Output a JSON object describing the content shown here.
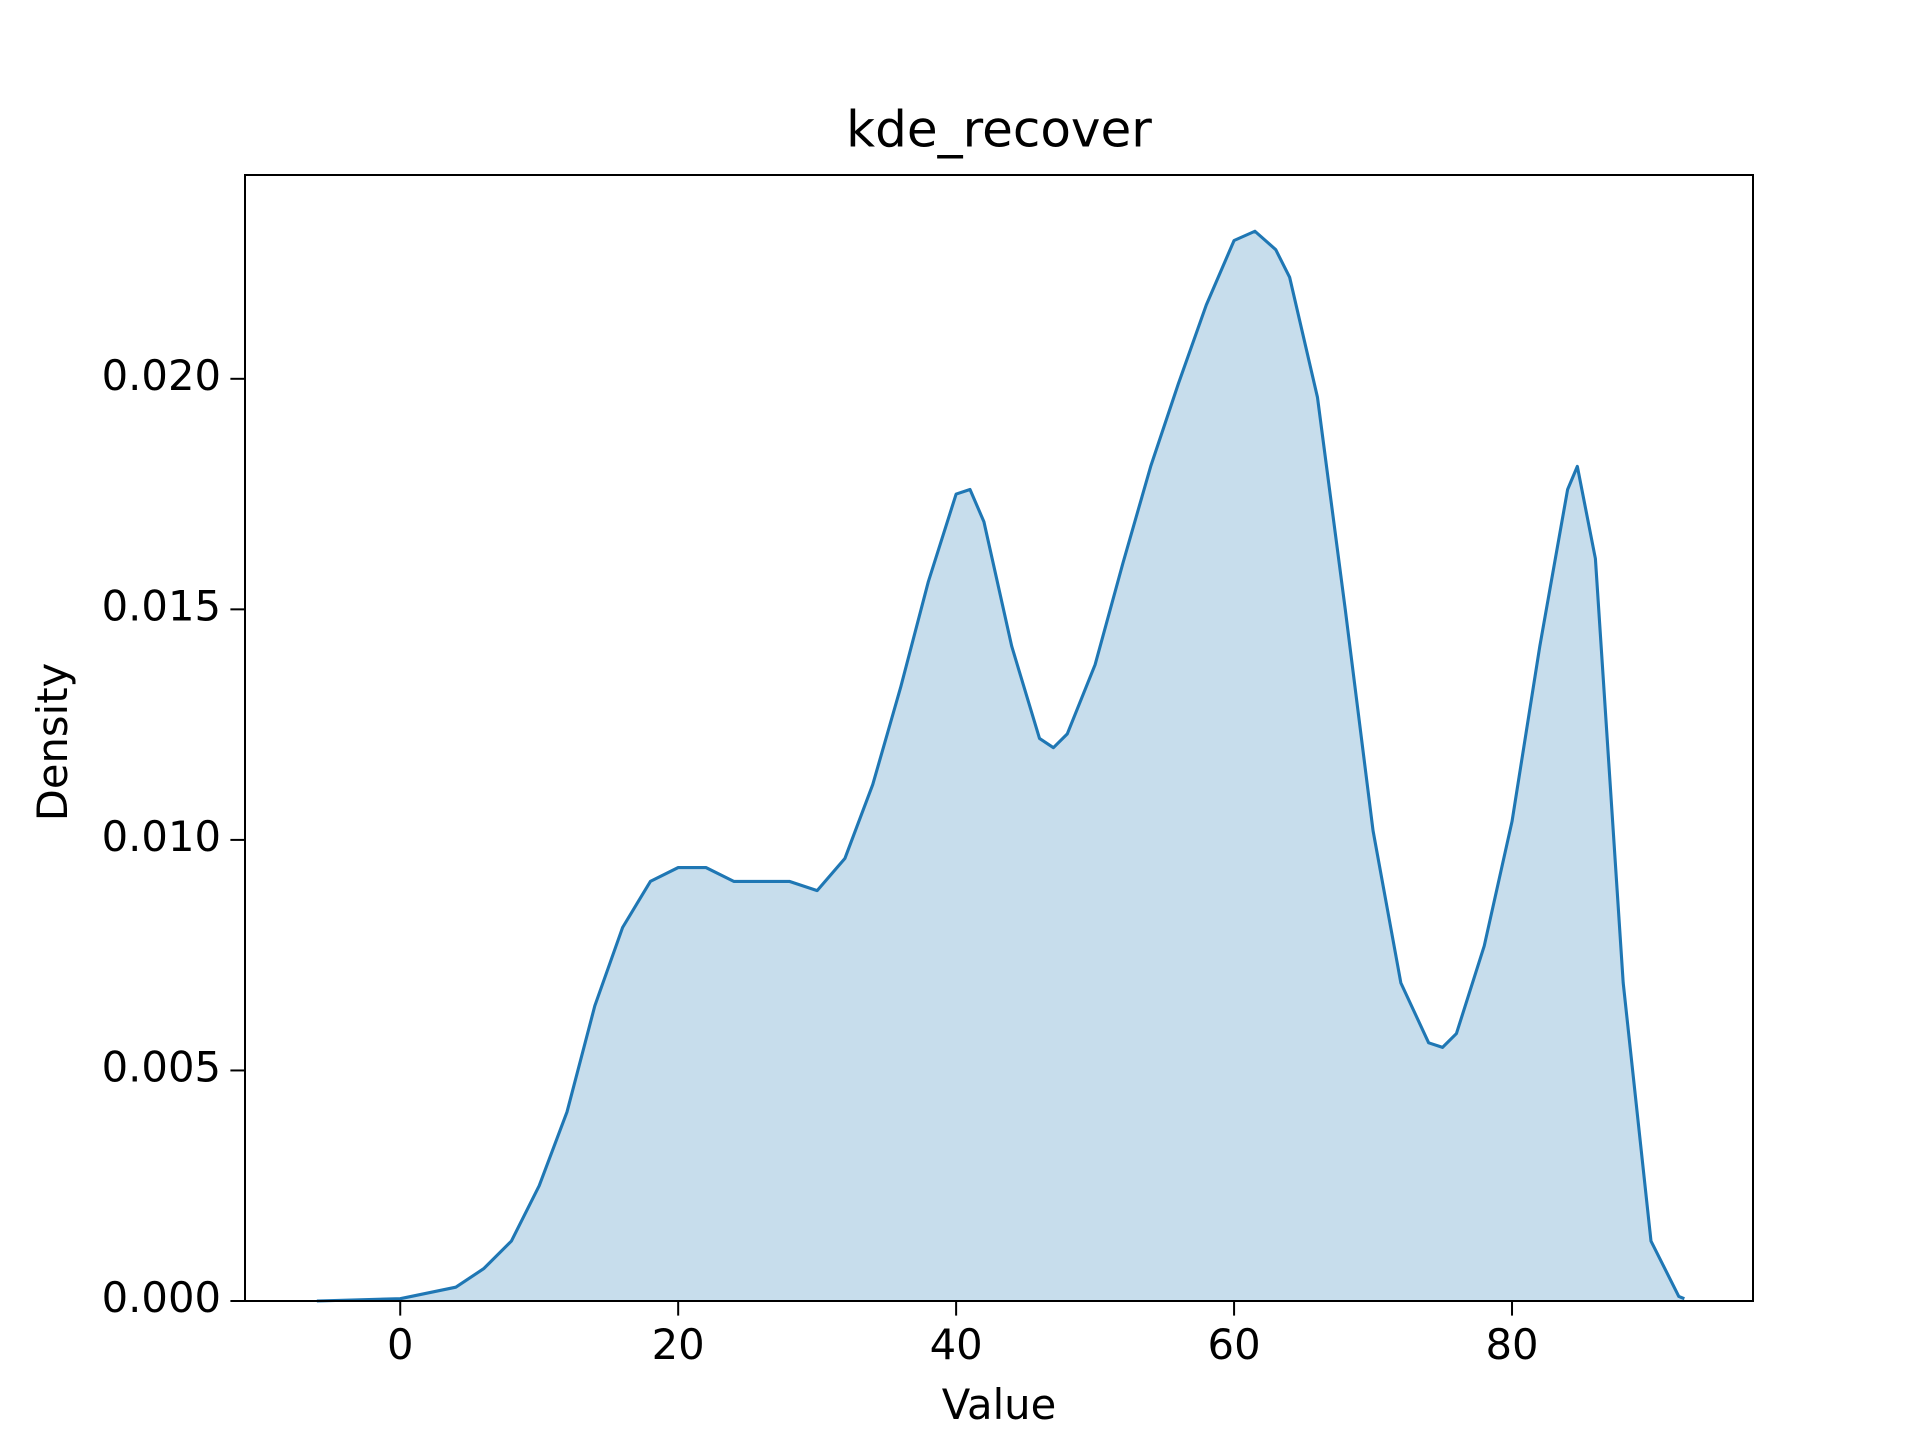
{
  "chart_data": {
    "type": "kde",
    "title": "kde_recover",
    "xlabel": "Value",
    "ylabel": "Density",
    "x": [
      -6,
      0,
      4,
      6,
      8,
      10,
      12,
      14,
      16,
      18,
      20,
      22,
      24,
      26,
      28,
      30,
      32,
      34,
      36,
      38,
      40,
      41,
      42,
      44,
      46,
      47,
      48,
      50,
      52,
      54,
      56,
      58,
      60,
      61.5,
      63,
      64,
      66,
      68,
      70,
      72,
      74,
      75,
      76,
      78,
      80,
      82,
      84,
      84.7,
      86,
      88,
      90,
      92,
      92.4
    ],
    "series": [
      {
        "color": "#1f77b4",
        "values": [
          0,
          5e-05,
          0.0003,
          0.0007,
          0.0013,
          0.0025,
          0.0041,
          0.0064,
          0.0081,
          0.0091,
          0.0094,
          0.0094,
          0.0091,
          0.0091,
          0.0091,
          0.0089,
          0.0096,
          0.0112,
          0.0133,
          0.0156,
          0.0175,
          0.0176,
          0.0169,
          0.0142,
          0.0122,
          0.012,
          0.0123,
          0.0138,
          0.016,
          0.0181,
          0.0199,
          0.0216,
          0.023,
          0.0232,
          0.0228,
          0.0222,
          0.0196,
          0.015,
          0.0102,
          0.0069,
          0.0056,
          0.0055,
          0.0058,
          0.0077,
          0.0104,
          0.0142,
          0.0176,
          0.0181,
          0.0161,
          0.0069,
          0.0013,
          0.0001,
          5e-05
        ]
      }
    ],
    "fill_opacity": 0.25,
    "xlim": [
      -11.17,
      97.34
    ],
    "xticks": [
      0,
      20,
      40,
      60,
      80
    ],
    "ylim": [
      0,
      0.02442
    ],
    "yticks": [
      {
        "value": 0,
        "label": "0.000"
      },
      {
        "value": 0.005,
        "label": "0.005"
      },
      {
        "value": 0.01,
        "label": "0.010"
      },
      {
        "value": 0.015,
        "label": "0.015"
      },
      {
        "value": 0.02,
        "label": "0.020"
      }
    ]
  }
}
